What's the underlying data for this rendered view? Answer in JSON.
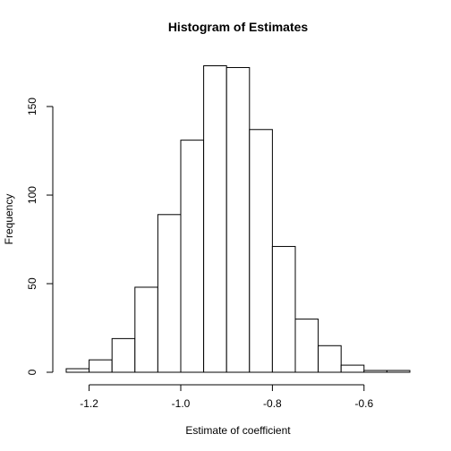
{
  "chart_data": {
    "type": "bar",
    "title": "Histogram of Estimates",
    "xlabel": "Estimate of coefficient",
    "ylabel": "Frequency",
    "bins": [
      {
        "x0": -1.25,
        "x1": -1.2,
        "count": 2
      },
      {
        "x0": -1.2,
        "x1": -1.15,
        "count": 7
      },
      {
        "x0": -1.15,
        "x1": -1.1,
        "count": 19
      },
      {
        "x0": -1.1,
        "x1": -1.05,
        "count": 48
      },
      {
        "x0": -1.05,
        "x1": -1.0,
        "count": 89
      },
      {
        "x0": -1.0,
        "x1": -0.95,
        "count": 131
      },
      {
        "x0": -0.95,
        "x1": -0.9,
        "count": 173
      },
      {
        "x0": -0.9,
        "x1": -0.85,
        "count": 172
      },
      {
        "x0": -0.85,
        "x1": -0.8,
        "count": 137
      },
      {
        "x0": -0.8,
        "x1": -0.75,
        "count": 71
      },
      {
        "x0": -0.75,
        "x1": -0.7,
        "count": 30
      },
      {
        "x0": -0.7,
        "x1": -0.65,
        "count": 15
      },
      {
        "x0": -0.65,
        "x1": -0.6,
        "count": 4
      },
      {
        "x0": -0.6,
        "x1": -0.55,
        "count": 1
      },
      {
        "x0": -0.55,
        "x1": -0.5,
        "count": 1
      }
    ],
    "xlim": [
      -1.25,
      -0.5
    ],
    "ylim": [
      0,
      180
    ],
    "x_ticks": [
      -1.2,
      -1.0,
      -0.8,
      -0.6
    ],
    "x_tick_labels": [
      "-1.2",
      "-1.0",
      "-0.8",
      "-0.6"
    ],
    "y_ticks": [
      0,
      50,
      100,
      150
    ],
    "y_tick_labels": [
      "0",
      "50",
      "100",
      "150"
    ],
    "grid": false,
    "bar_fill": "#ffffff",
    "bar_stroke": "#000000"
  }
}
